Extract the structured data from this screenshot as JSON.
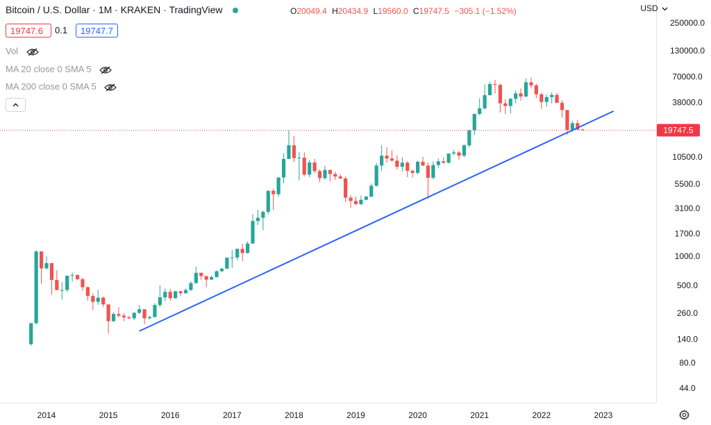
{
  "header": {
    "title": "Bitcoin / U.S. Dollar · 1M · KRAKEN · TradingView",
    "status_color": "#26a69a",
    "ohlc": [
      {
        "key": "O",
        "value": "20049.4"
      },
      {
        "key": "H",
        "value": "20434.9"
      },
      {
        "key": "L",
        "value": "19560.0"
      },
      {
        "key": "C",
        "value": "19747.5"
      }
    ],
    "change": "−305.1 (−1.52%)",
    "bid": "19747.6",
    "spread": "0.1",
    "ask": "19747.7"
  },
  "indicators": [
    {
      "label": "Vol",
      "icon": "eye-hidden-icon"
    },
    {
      "label": "MA 20 close 0 SMA 5",
      "icon": "eye-hidden-icon"
    },
    {
      "label": "MA 200 close 0 SMA 5",
      "icon": "eye-hidden-icon"
    }
  ],
  "currency": "USD",
  "current_price_label": "19747.5",
  "colors": {
    "up": "#26a69a",
    "down": "#ef5350",
    "trendline": "#2962ff",
    "price_label_bg": "#f23645"
  },
  "chart_data": {
    "type": "candlestick",
    "y_scale": "log",
    "y_ticks": [
      "250000.0",
      "130000.0",
      "70000.0",
      "38000.0",
      "19747.5",
      "10500.0",
      "5500.0",
      "3100.0",
      "1700.0",
      "1000.0",
      "500.0",
      "260.0",
      "140.0",
      "80.0",
      "44.0"
    ],
    "x_ticks": [
      "2014",
      "2015",
      "2016",
      "2017",
      "2018",
      "2019",
      "2020",
      "2021",
      "2022",
      "2023"
    ],
    "trendline": [
      {
        "x": "2015-07",
        "y": 170
      },
      {
        "x": "2023-03",
        "y": 31000
      }
    ],
    "ohlc": [
      {
        "t": "2013-10",
        "o": 125,
        "h": 205,
        "l": 120,
        "c": 205
      },
      {
        "t": "2013-11",
        "o": 205,
        "h": 1150,
        "l": 200,
        "c": 1120
      },
      {
        "t": "2013-12",
        "o": 1120,
        "h": 1130,
        "l": 520,
        "c": 750
      },
      {
        "t": "2014-01",
        "o": 750,
        "h": 1000,
        "l": 730,
        "c": 850
      },
      {
        "t": "2014-02",
        "o": 850,
        "h": 850,
        "l": 400,
        "c": 570
      },
      {
        "t": "2014-03",
        "o": 570,
        "h": 720,
        "l": 445,
        "c": 450
      },
      {
        "t": "2014-04",
        "o": 450,
        "h": 540,
        "l": 360,
        "c": 450
      },
      {
        "t": "2014-05",
        "o": 450,
        "h": 630,
        "l": 430,
        "c": 630
      },
      {
        "t": "2014-06",
        "o": 630,
        "h": 680,
        "l": 550,
        "c": 640
      },
      {
        "t": "2014-07",
        "o": 640,
        "h": 650,
        "l": 570,
        "c": 580
      },
      {
        "t": "2014-08",
        "o": 580,
        "h": 600,
        "l": 440,
        "c": 480
      },
      {
        "t": "2014-09",
        "o": 480,
        "h": 490,
        "l": 350,
        "c": 390
      },
      {
        "t": "2014-10",
        "o": 390,
        "h": 415,
        "l": 280,
        "c": 340
      },
      {
        "t": "2014-11",
        "o": 340,
        "h": 450,
        "l": 315,
        "c": 375
      },
      {
        "t": "2014-12",
        "o": 375,
        "h": 385,
        "l": 300,
        "c": 320
      },
      {
        "t": "2015-01",
        "o": 320,
        "h": 320,
        "l": 160,
        "c": 215
      },
      {
        "t": "2015-02",
        "o": 215,
        "h": 265,
        "l": 210,
        "c": 255
      },
      {
        "t": "2015-03",
        "o": 255,
        "h": 300,
        "l": 235,
        "c": 245
      },
      {
        "t": "2015-04",
        "o": 245,
        "h": 260,
        "l": 215,
        "c": 235
      },
      {
        "t": "2015-05",
        "o": 235,
        "h": 245,
        "l": 225,
        "c": 230
      },
      {
        "t": "2015-06",
        "o": 230,
        "h": 265,
        "l": 220,
        "c": 262
      },
      {
        "t": "2015-07",
        "o": 262,
        "h": 315,
        "l": 255,
        "c": 285
      },
      {
        "t": "2015-08",
        "o": 285,
        "h": 285,
        "l": 200,
        "c": 230
      },
      {
        "t": "2015-09",
        "o": 230,
        "h": 245,
        "l": 225,
        "c": 237
      },
      {
        "t": "2015-10",
        "o": 237,
        "h": 330,
        "l": 235,
        "c": 315
      },
      {
        "t": "2015-11",
        "o": 315,
        "h": 500,
        "l": 300,
        "c": 378
      },
      {
        "t": "2015-12",
        "o": 378,
        "h": 465,
        "l": 345,
        "c": 430
      },
      {
        "t": "2016-01",
        "o": 430,
        "h": 460,
        "l": 350,
        "c": 370
      },
      {
        "t": "2016-02",
        "o": 370,
        "h": 440,
        "l": 365,
        "c": 436
      },
      {
        "t": "2016-03",
        "o": 436,
        "h": 440,
        "l": 390,
        "c": 416
      },
      {
        "t": "2016-04",
        "o": 416,
        "h": 465,
        "l": 415,
        "c": 450
      },
      {
        "t": "2016-05",
        "o": 450,
        "h": 550,
        "l": 440,
        "c": 530
      },
      {
        "t": "2016-06",
        "o": 530,
        "h": 780,
        "l": 520,
        "c": 675
      },
      {
        "t": "2016-07",
        "o": 675,
        "h": 680,
        "l": 570,
        "c": 625
      },
      {
        "t": "2016-08",
        "o": 625,
        "h": 625,
        "l": 480,
        "c": 575
      },
      {
        "t": "2016-09",
        "o": 575,
        "h": 630,
        "l": 570,
        "c": 610
      },
      {
        "t": "2016-10",
        "o": 610,
        "h": 720,
        "l": 605,
        "c": 700
      },
      {
        "t": "2016-11",
        "o": 700,
        "h": 760,
        "l": 690,
        "c": 745
      },
      {
        "t": "2016-12",
        "o": 745,
        "h": 975,
        "l": 740,
        "c": 965
      },
      {
        "t": "2017-01",
        "o": 965,
        "h": 1160,
        "l": 760,
        "c": 970
      },
      {
        "t": "2017-02",
        "o": 970,
        "h": 1200,
        "l": 915,
        "c": 1190
      },
      {
        "t": "2017-03",
        "o": 1190,
        "h": 1350,
        "l": 890,
        "c": 1080
      },
      {
        "t": "2017-04",
        "o": 1080,
        "h": 1420,
        "l": 1060,
        "c": 1350
      },
      {
        "t": "2017-05",
        "o": 1350,
        "h": 2700,
        "l": 1340,
        "c": 2300
      },
      {
        "t": "2017-06",
        "o": 2300,
        "h": 3000,
        "l": 2100,
        "c": 2480
      },
      {
        "t": "2017-07",
        "o": 2480,
        "h": 2950,
        "l": 1850,
        "c": 2860
      },
      {
        "t": "2017-08",
        "o": 2860,
        "h": 4750,
        "l": 2700,
        "c": 4700
      },
      {
        "t": "2017-09",
        "o": 4700,
        "h": 4950,
        "l": 2980,
        "c": 4340
      },
      {
        "t": "2017-10",
        "o": 4340,
        "h": 6450,
        "l": 4100,
        "c": 6450
      },
      {
        "t": "2017-11",
        "o": 6450,
        "h": 11400,
        "l": 5600,
        "c": 10000
      },
      {
        "t": "2017-12",
        "o": 10000,
        "h": 19700,
        "l": 10000,
        "c": 13800
      },
      {
        "t": "2018-01",
        "o": 13800,
        "h": 17200,
        "l": 9300,
        "c": 10200
      },
      {
        "t": "2018-02",
        "o": 10200,
        "h": 11800,
        "l": 6000,
        "c": 10300
      },
      {
        "t": "2018-03",
        "o": 10300,
        "h": 11700,
        "l": 6600,
        "c": 6900
      },
      {
        "t": "2018-04",
        "o": 6900,
        "h": 9800,
        "l": 6450,
        "c": 9200
      },
      {
        "t": "2018-05",
        "o": 9200,
        "h": 10000,
        "l": 7100,
        "c": 7500
      },
      {
        "t": "2018-06",
        "o": 7500,
        "h": 7800,
        "l": 5750,
        "c": 6350
      },
      {
        "t": "2018-07",
        "o": 6350,
        "h": 8500,
        "l": 6100,
        "c": 7700
      },
      {
        "t": "2018-08",
        "o": 7700,
        "h": 7750,
        "l": 5900,
        "c": 7000
      },
      {
        "t": "2018-09",
        "o": 7000,
        "h": 7400,
        "l": 6100,
        "c": 6600
      },
      {
        "t": "2018-10",
        "o": 6600,
        "h": 7000,
        "l": 6200,
        "c": 6300
      },
      {
        "t": "2018-11",
        "o": 6300,
        "h": 6600,
        "l": 3600,
        "c": 4000
      },
      {
        "t": "2018-12",
        "o": 4000,
        "h": 4250,
        "l": 3150,
        "c": 3700
      },
      {
        "t": "2019-01",
        "o": 3700,
        "h": 4100,
        "l": 3350,
        "c": 3430
      },
      {
        "t": "2019-02",
        "o": 3430,
        "h": 4200,
        "l": 3350,
        "c": 3800
      },
      {
        "t": "2019-03",
        "o": 3800,
        "h": 4150,
        "l": 3750,
        "c": 4100
      },
      {
        "t": "2019-04",
        "o": 4100,
        "h": 5600,
        "l": 4050,
        "c": 5300
      },
      {
        "t": "2019-05",
        "o": 5300,
        "h": 9100,
        "l": 5200,
        "c": 8550
      },
      {
        "t": "2019-06",
        "o": 8550,
        "h": 13800,
        "l": 7500,
        "c": 10800
      },
      {
        "t": "2019-07",
        "o": 10800,
        "h": 13200,
        "l": 9100,
        "c": 10100
      },
      {
        "t": "2019-08",
        "o": 10100,
        "h": 12300,
        "l": 9400,
        "c": 9600
      },
      {
        "t": "2019-09",
        "o": 9600,
        "h": 10900,
        "l": 7800,
        "c": 8300
      },
      {
        "t": "2019-10",
        "o": 8300,
        "h": 10400,
        "l": 7400,
        "c": 9150
      },
      {
        "t": "2019-11",
        "o": 9150,
        "h": 9500,
        "l": 6500,
        "c": 7550
      },
      {
        "t": "2019-12",
        "o": 7550,
        "h": 7750,
        "l": 6450,
        "c": 7200
      },
      {
        "t": "2020-01",
        "o": 7200,
        "h": 9550,
        "l": 6900,
        "c": 9350
      },
      {
        "t": "2020-02",
        "o": 9350,
        "h": 10500,
        "l": 8400,
        "c": 8550
      },
      {
        "t": "2020-03",
        "o": 8550,
        "h": 9200,
        "l": 3900,
        "c": 6400
      },
      {
        "t": "2020-04",
        "o": 6400,
        "h": 9450,
        "l": 6150,
        "c": 8650
      },
      {
        "t": "2020-05",
        "o": 8650,
        "h": 10100,
        "l": 8100,
        "c": 9450
      },
      {
        "t": "2020-06",
        "o": 9450,
        "h": 10400,
        "l": 8900,
        "c": 9150
      },
      {
        "t": "2020-07",
        "o": 9150,
        "h": 11400,
        "l": 8950,
        "c": 11350
      },
      {
        "t": "2020-08",
        "o": 11350,
        "h": 12450,
        "l": 10900,
        "c": 11650
      },
      {
        "t": "2020-09",
        "o": 11650,
        "h": 12050,
        "l": 9850,
        "c": 10800
      },
      {
        "t": "2020-10",
        "o": 10800,
        "h": 14100,
        "l": 10400,
        "c": 13800
      },
      {
        "t": "2020-11",
        "o": 13800,
        "h": 19900,
        "l": 13200,
        "c": 19700
      },
      {
        "t": "2020-12",
        "o": 19700,
        "h": 29300,
        "l": 17600,
        "c": 29000
      },
      {
        "t": "2021-01",
        "o": 29000,
        "h": 41900,
        "l": 28100,
        "c": 33100
      },
      {
        "t": "2021-02",
        "o": 33100,
        "h": 58300,
        "l": 32300,
        "c": 45200
      },
      {
        "t": "2021-03",
        "o": 45200,
        "h": 61700,
        "l": 45000,
        "c": 58800
      },
      {
        "t": "2021-04",
        "o": 58800,
        "h": 64900,
        "l": 47000,
        "c": 57700
      },
      {
        "t": "2021-05",
        "o": 57700,
        "h": 59500,
        "l": 30000,
        "c": 37300
      },
      {
        "t": "2021-06",
        "o": 37300,
        "h": 41300,
        "l": 28800,
        "c": 35000
      },
      {
        "t": "2021-07",
        "o": 35000,
        "h": 42400,
        "l": 29300,
        "c": 41500
      },
      {
        "t": "2021-08",
        "o": 41500,
        "h": 50500,
        "l": 37300,
        "c": 47100
      },
      {
        "t": "2021-09",
        "o": 47100,
        "h": 52900,
        "l": 39600,
        "c": 43800
      },
      {
        "t": "2021-10",
        "o": 43800,
        "h": 67000,
        "l": 43300,
        "c": 61300
      },
      {
        "t": "2021-11",
        "o": 61300,
        "h": 69000,
        "l": 53300,
        "c": 57000
      },
      {
        "t": "2021-12",
        "o": 57000,
        "h": 59100,
        "l": 42000,
        "c": 46200
      },
      {
        "t": "2022-01",
        "o": 46200,
        "h": 47900,
        "l": 32900,
        "c": 38500
      },
      {
        "t": "2022-02",
        "o": 38500,
        "h": 45800,
        "l": 34300,
        "c": 43200
      },
      {
        "t": "2022-03",
        "o": 43200,
        "h": 48200,
        "l": 37200,
        "c": 45500
      },
      {
        "t": "2022-04",
        "o": 45500,
        "h": 47400,
        "l": 37600,
        "c": 37700
      },
      {
        "t": "2022-05",
        "o": 37700,
        "h": 40000,
        "l": 26700,
        "c": 31800
      },
      {
        "t": "2022-06",
        "o": 31800,
        "h": 31900,
        "l": 17600,
        "c": 19900
      },
      {
        "t": "2022-07",
        "o": 19900,
        "h": 24600,
        "l": 18800,
        "c": 23300
      },
      {
        "t": "2022-08",
        "o": 23300,
        "h": 25200,
        "l": 19600,
        "c": 20050
      },
      {
        "t": "2022-09",
        "o": 20049.4,
        "h": 20434.9,
        "l": 19560.0,
        "c": 19747.5
      }
    ]
  }
}
